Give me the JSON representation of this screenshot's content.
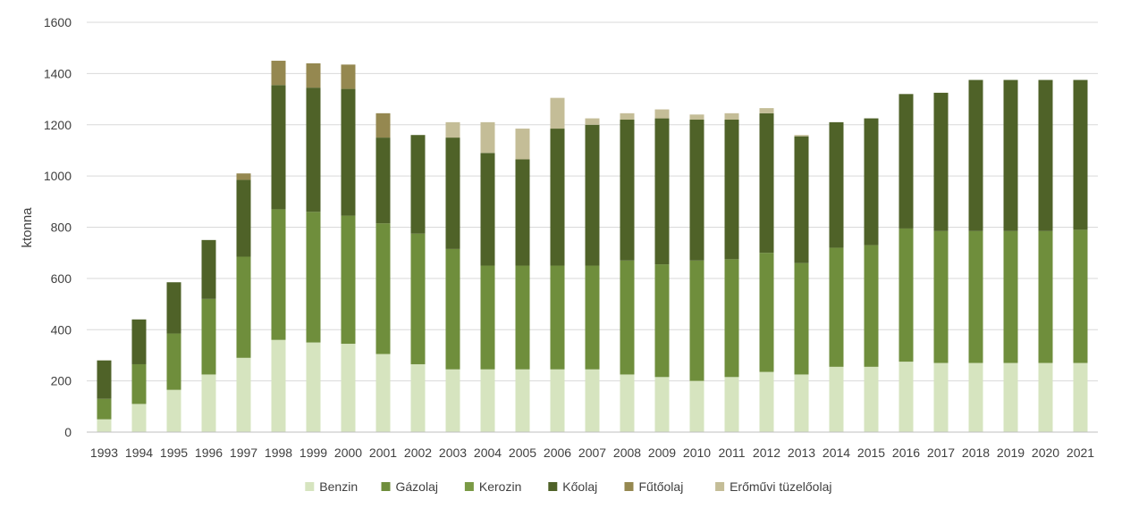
{
  "chart_data": {
    "type": "bar",
    "stacked": true,
    "ylabel": "ktonna",
    "xlabel": "",
    "title": "",
    "ylim": [
      0,
      1600
    ],
    "yticks": [
      0,
      200,
      400,
      600,
      800,
      1000,
      1200,
      1400,
      1600
    ],
    "grid": true,
    "legend_position": "bottom",
    "categories": [
      "1993",
      "1994",
      "1995",
      "1996",
      "1997",
      "1998",
      "1999",
      "2000",
      "2001",
      "2002",
      "2003",
      "2004",
      "2005",
      "2006",
      "2007",
      "2008",
      "2009",
      "2010",
      "2011",
      "2012",
      "2013",
      "2014",
      "2015",
      "2016",
      "2017",
      "2018",
      "2019",
      "2020",
      "2021"
    ],
    "series": [
      {
        "name": "Benzin",
        "color": "#d6e4bf",
        "values": [
          50,
          110,
          165,
          225,
          290,
          360,
          350,
          345,
          305,
          265,
          245,
          245,
          245,
          245,
          245,
          225,
          215,
          200,
          215,
          235,
          225,
          255,
          255,
          275,
          270,
          270,
          270,
          270,
          270
        ]
      },
      {
        "name": "Gázolaj",
        "color": "#6f8e3c",
        "values": [
          80,
          155,
          220,
          295,
          395,
          510,
          510,
          500,
          510,
          510,
          470,
          405,
          405,
          405,
          405,
          445,
          440,
          470,
          460,
          465,
          435,
          465,
          475,
          520,
          515,
          515,
          515,
          515,
          520
        ]
      },
      {
        "name": "Kerozin",
        "color": "#7a9a45",
        "values": [
          0,
          0,
          0,
          0,
          0,
          0,
          0,
          0,
          0,
          0,
          0,
          0,
          0,
          0,
          0,
          0,
          0,
          0,
          0,
          0,
          0,
          0,
          0,
          0,
          0,
          0,
          0,
          0,
          0
        ]
      },
      {
        "name": "Kőolaj",
        "color": "#4f6228",
        "values": [
          150,
          175,
          200,
          230,
          300,
          485,
          485,
          495,
          335,
          385,
          435,
          440,
          415,
          535,
          550,
          550,
          570,
          550,
          545,
          545,
          495,
          490,
          495,
          525,
          540,
          590,
          590,
          590,
          585
        ]
      },
      {
        "name": "Fűtőolaj",
        "color": "#958850",
        "values": [
          0,
          0,
          0,
          0,
          25,
          95,
          95,
          95,
          95,
          0,
          0,
          0,
          0,
          0,
          0,
          0,
          0,
          0,
          0,
          0,
          0,
          0,
          0,
          0,
          0,
          0,
          0,
          0,
          0
        ]
      },
      {
        "name": "Erőművi tüzelőolaj",
        "color": "#c4bd97",
        "values": [
          0,
          0,
          0,
          0,
          0,
          0,
          0,
          0,
          0,
          0,
          60,
          120,
          120,
          120,
          25,
          25,
          35,
          20,
          25,
          20,
          5,
          0,
          0,
          0,
          0,
          0,
          0,
          0,
          0
        ]
      }
    ]
  }
}
